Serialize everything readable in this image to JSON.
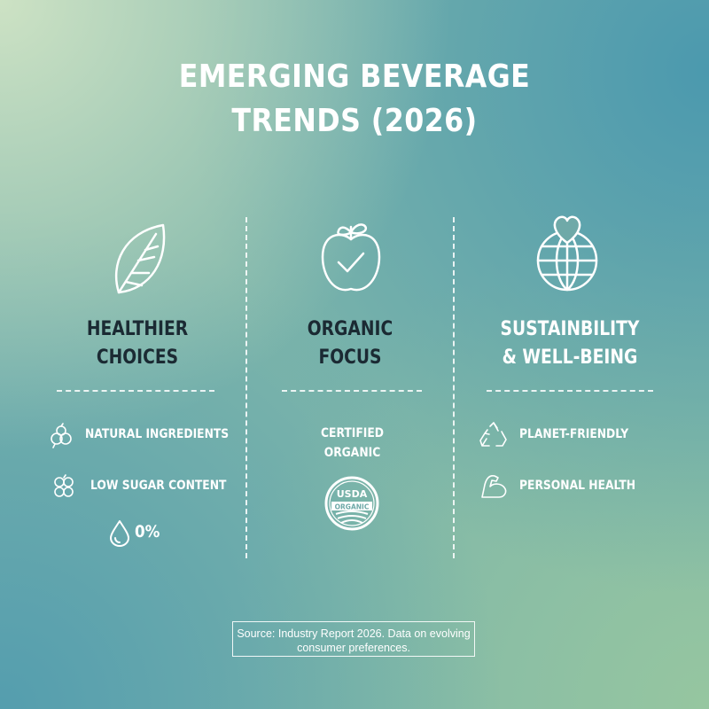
{
  "header": {
    "title_lines": [
      "EMERGING BEVERAGE",
      "TRENDS (2026)"
    ]
  },
  "columns": [
    {
      "heading_lines": [
        "HEALTHIER",
        "CHOICES"
      ],
      "items": [
        "NATURAL INGREDIENTS",
        "LOW SUGAR CONTENT"
      ],
      "stat": "0%"
    },
    {
      "heading_lines": [
        "ORGANIC",
        "FOCUS"
      ],
      "items": [
        "CERTIFIED ORGANIC"
      ],
      "badge": [
        "USDA",
        "ORGANIC"
      ]
    },
    {
      "heading_lines": [
        "SUSTAINBILITY",
        "& WELL-BEING"
      ],
      "items": [
        "PLANET-FRIENDLY",
        "PERSONAL HEALTH"
      ]
    }
  ],
  "footer": {
    "source": "Source: Industry Report 2026. Data on evolving consumer preferences."
  }
}
